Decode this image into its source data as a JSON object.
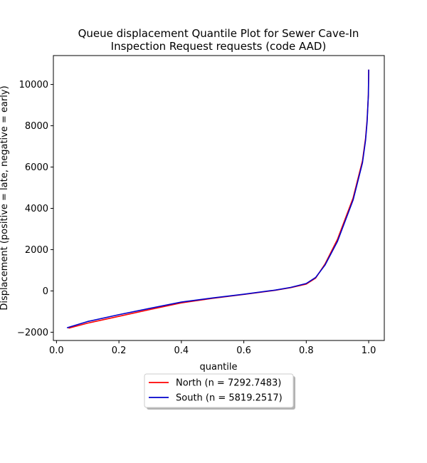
{
  "chart_data": {
    "type": "line",
    "title_lines": [
      "Queue displacement Quantile Plot for Sewer Cave-In",
      "Inspection Request  requests (code AAD)"
    ],
    "xlabel": "quantile",
    "ylabel": "Displacement (positive = late, negative = early)",
    "xlim": [
      -0.01,
      1.05
    ],
    "ylim": [
      -2400,
      11400
    ],
    "xticks": [
      0.0,
      0.2,
      0.4,
      0.6,
      0.8,
      1.0
    ],
    "xtick_labels": [
      "0.0",
      "0.2",
      "0.4",
      "0.6",
      "0.8",
      "1.0"
    ],
    "yticks": [
      -2000,
      0,
      2000,
      4000,
      6000,
      8000,
      10000
    ],
    "ytick_labels": [
      "−2000",
      "0",
      "2000",
      "4000",
      "6000",
      "8000",
      "10000"
    ],
    "legend_position": "below",
    "grid": false,
    "series": [
      {
        "name": "North (n = 7292.7483)",
        "color": "#ff0000",
        "x": [
          0.04,
          0.1,
          0.2,
          0.3,
          0.4,
          0.5,
          0.6,
          0.7,
          0.75,
          0.8,
          0.83,
          0.86,
          0.9,
          0.95,
          0.98,
          0.99,
          0.995,
          0.999,
          1.0
        ],
        "y": [
          -1800,
          -1560,
          -1230,
          -900,
          -580,
          -360,
          -170,
          30,
          160,
          330,
          620,
          1300,
          2500,
          4500,
          6300,
          7400,
          8300,
          9500,
          10700
        ]
      },
      {
        "name": "South (n = 5819.2517)",
        "color": "#0000cc",
        "x": [
          0.035,
          0.1,
          0.2,
          0.3,
          0.4,
          0.5,
          0.6,
          0.7,
          0.75,
          0.8,
          0.83,
          0.86,
          0.9,
          0.95,
          0.98,
          0.99,
          0.995,
          0.999,
          1.0
        ],
        "y": [
          -1780,
          -1480,
          -1150,
          -840,
          -540,
          -340,
          -160,
          40,
          170,
          360,
          650,
          1250,
          2400,
          4400,
          6200,
          7300,
          8200,
          9500,
          10700
        ]
      }
    ]
  }
}
